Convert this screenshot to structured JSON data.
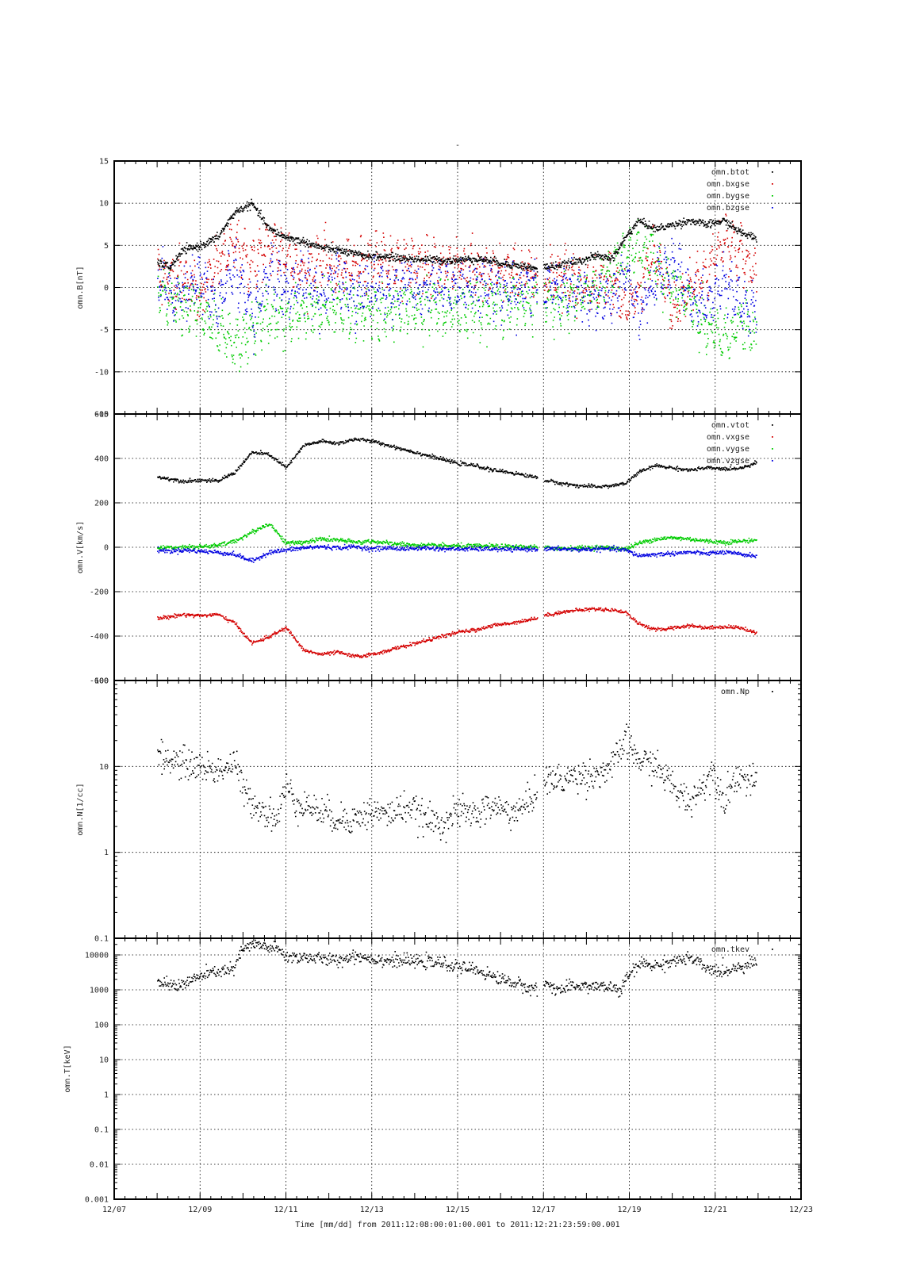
{
  "figure": {
    "title": "-",
    "xlabel_text": "Time [mm/dd]  from 2011:12:08:00:01:00.001  to  2011:12:21:23:59:00.001"
  },
  "colors": {
    "black": "#000000",
    "red": "#d40000",
    "green": "#00cc00",
    "blue": "#0000e0"
  },
  "chart_data": [
    {
      "type": "scatter",
      "id": "b",
      "ylabel": "omn.B[nT]",
      "yscale": "linear",
      "ylim": [
        -15,
        15
      ],
      "yticks": [
        -15,
        -10,
        -5,
        0,
        5,
        10,
        15
      ],
      "ytick_labels": [
        "-15",
        "-10",
        "-5",
        "0",
        "5",
        "10",
        "15"
      ],
      "xlim": [
        "12/07",
        "12/23"
      ],
      "xtick_labels": [
        "12/07",
        "12/09",
        "12/11",
        "12/13",
        "12/15",
        "12/17",
        "12/19",
        "12/21",
        "12/23"
      ],
      "xticks_day": [
        7,
        9,
        11,
        13,
        15,
        17,
        19,
        21,
        23
      ],
      "grid": true,
      "legend": "top-right",
      "series": [
        {
          "name": "omn.btot",
          "color": "#000000",
          "x": [
            8.0,
            8.3,
            8.6,
            9.0,
            9.4,
            9.8,
            10.2,
            10.6,
            11.0,
            11.4,
            11.8,
            12.2,
            12.6,
            13.0,
            13.4,
            13.8,
            14.2,
            14.6,
            15.0,
            15.4,
            15.8,
            16.2,
            16.6,
            16.9,
            17.0,
            17.4,
            17.8,
            18.2,
            18.6,
            18.9,
            19.2,
            19.6,
            20.0,
            20.4,
            20.8,
            21.2,
            21.6,
            21.95
          ],
          "y": [
            3,
            2.5,
            4.5,
            5,
            6,
            9,
            10,
            7,
            6,
            5.5,
            4.8,
            4.5,
            4,
            3.8,
            3.7,
            3.5,
            3.4,
            3.3,
            3.3,
            3.5,
            3.2,
            2.8,
            2.5,
            2.2,
            2.5,
            2.7,
            3.2,
            3.8,
            3.5,
            6,
            8,
            7,
            7.5,
            8,
            7.5,
            8,
            6.5,
            6
          ]
        },
        {
          "name": "omn.bxgse",
          "color": "#d40000",
          "x": [
            8.0,
            8.3,
            8.6,
            9.0,
            9.4,
            9.8,
            10.2,
            10.6,
            11.0,
            11.4,
            11.8,
            12.2,
            12.6,
            13.0,
            13.4,
            13.8,
            14.2,
            14.6,
            15.0,
            15.4,
            15.8,
            16.2,
            16.6,
            16.9,
            17.0,
            17.4,
            17.8,
            18.2,
            18.6,
            18.9,
            19.2,
            19.6,
            20.0,
            20.4,
            20.8,
            21.2,
            21.6,
            21.95
          ],
          "y": [
            2,
            1,
            1.5,
            -1,
            3,
            5,
            3,
            5,
            4,
            2,
            3.5,
            2,
            2.5,
            3.5,
            3,
            3,
            2.5,
            2.5,
            3,
            2,
            1.5,
            1.8,
            1.5,
            1,
            1,
            2,
            0.5,
            0.5,
            1.5,
            -3,
            0,
            4,
            -3,
            0,
            2,
            6,
            4,
            1
          ]
        },
        {
          "name": "omn.bygse",
          "color": "#00cc00",
          "x": [
            8.0,
            8.3,
            8.6,
            9.0,
            9.4,
            9.8,
            10.2,
            10.6,
            11.0,
            11.4,
            11.8,
            12.2,
            12.6,
            13.0,
            13.4,
            13.8,
            14.2,
            14.6,
            15.0,
            15.4,
            15.8,
            16.2,
            16.6,
            16.9,
            17.0,
            17.4,
            17.8,
            18.2,
            18.6,
            18.9,
            19.2,
            19.6,
            20.0,
            20.4,
            20.8,
            21.2,
            21.6,
            21.95
          ],
          "y": [
            0,
            -1,
            -2,
            -3,
            -5,
            -7,
            -5,
            -3,
            -4,
            -2.5,
            -3,
            -2,
            -3,
            -2.5,
            -3,
            -2.5,
            -2,
            -2.5,
            -2.5,
            -2,
            -2,
            -1.8,
            -1.5,
            -1,
            -1.5,
            -2,
            -1,
            0,
            2,
            4,
            5,
            3,
            0,
            -2,
            -5,
            -6,
            -4,
            -6
          ]
        },
        {
          "name": "omn.bzgse",
          "color": "#0000e0",
          "x": [
            8.0,
            8.3,
            8.6,
            9.0,
            9.4,
            9.8,
            10.2,
            10.6,
            11.0,
            11.4,
            11.8,
            12.2,
            12.6,
            13.0,
            13.4,
            13.8,
            14.2,
            14.6,
            15.0,
            15.4,
            15.8,
            16.2,
            16.6,
            16.9,
            17.0,
            17.4,
            17.8,
            18.2,
            18.6,
            18.9,
            19.2,
            19.6,
            20.0,
            20.4,
            20.8,
            21.2,
            21.6,
            21.95
          ],
          "y": [
            2,
            -1,
            0,
            1,
            -2,
            3,
            -4,
            2,
            -1,
            1,
            -1,
            1.5,
            -1,
            0.5,
            -0.5,
            0.5,
            0,
            0.5,
            0,
            0.5,
            0,
            -0.5,
            0.3,
            0,
            0.5,
            0,
            -0.5,
            -1,
            -1.5,
            2,
            -3,
            1,
            3,
            -1,
            -2,
            1,
            -2,
            -3
          ]
        }
      ]
    },
    {
      "type": "scatter",
      "id": "v",
      "ylabel": "omn.V[km/s]",
      "yscale": "linear",
      "ylim": [
        -600,
        600
      ],
      "yticks": [
        -600,
        -400,
        -200,
        0,
        200,
        400,
        600
      ],
      "ytick_labels": [
        "-600",
        "-400",
        "-200",
        "0",
        "200",
        "400",
        "600"
      ],
      "xlim": [
        "12/07",
        "12/23"
      ],
      "grid": true,
      "legend": "top-right",
      "series": [
        {
          "name": "omn.vtot",
          "color": "#000000",
          "x": [
            8.0,
            8.3,
            8.6,
            9.0,
            9.4,
            9.8,
            10.2,
            10.6,
            11.0,
            11.4,
            11.8,
            12.2,
            12.6,
            13.0,
            13.4,
            13.8,
            14.2,
            14.6,
            15.0,
            15.4,
            15.8,
            16.2,
            16.6,
            16.9,
            17.0,
            17.4,
            17.8,
            18.2,
            18.6,
            18.9,
            19.2,
            19.6,
            20.0,
            20.4,
            20.8,
            21.2,
            21.6,
            21.95
          ],
          "y": [
            318,
            310,
            300,
            305,
            300,
            340,
            430,
            420,
            360,
            460,
            480,
            470,
            490,
            480,
            460,
            440,
            420,
            400,
            380,
            370,
            350,
            340,
            325,
            315,
            305,
            290,
            280,
            275,
            280,
            290,
            340,
            370,
            360,
            350,
            360,
            355,
            360,
            385
          ]
        },
        {
          "name": "omn.vxgse",
          "color": "#d40000",
          "x": [
            8.0,
            8.3,
            8.6,
            9.0,
            9.4,
            9.8,
            10.2,
            10.6,
            11.0,
            11.4,
            11.8,
            12.2,
            12.6,
            13.0,
            13.4,
            13.8,
            14.2,
            14.6,
            15.0,
            15.4,
            15.8,
            16.2,
            16.6,
            16.9,
            17.0,
            17.4,
            17.8,
            18.2,
            18.6,
            18.9,
            19.2,
            19.6,
            20.0,
            20.4,
            20.8,
            21.2,
            21.6,
            21.95
          ],
          "y": [
            -318,
            -310,
            -300,
            -305,
            -300,
            -340,
            -430,
            -400,
            -360,
            -460,
            -480,
            -470,
            -490,
            -480,
            -460,
            -440,
            -420,
            -400,
            -380,
            -370,
            -350,
            -340,
            -325,
            -315,
            -305,
            -290,
            -280,
            -275,
            -280,
            -290,
            -340,
            -370,
            -360,
            -350,
            -360,
            -355,
            -360,
            -385
          ]
        },
        {
          "name": "omn.vygse",
          "color": "#00cc00",
          "x": [
            8.0,
            8.3,
            8.6,
            9.0,
            9.4,
            9.8,
            10.2,
            10.6,
            11.0,
            11.4,
            11.8,
            12.2,
            12.6,
            13.0,
            13.4,
            13.8,
            14.2,
            14.6,
            15.0,
            15.4,
            15.8,
            16.2,
            16.6,
            16.9,
            17.0,
            17.4,
            17.8,
            18.2,
            18.6,
            18.9,
            19.2,
            19.6,
            20.0,
            20.4,
            20.8,
            21.2,
            21.6,
            21.95
          ],
          "y": [
            0,
            2,
            5,
            5,
            10,
            30,
            70,
            110,
            20,
            25,
            40,
            35,
            25,
            30,
            20,
            15,
            10,
            10,
            8,
            8,
            8,
            5,
            5,
            2,
            0,
            -2,
            0,
            2,
            0,
            -5,
            20,
            40,
            45,
            40,
            30,
            25,
            30,
            35
          ]
        },
        {
          "name": "omn.vzgse",
          "color": "#0000e0",
          "x": [
            8.0,
            8.3,
            8.6,
            9.0,
            9.4,
            9.8,
            10.2,
            10.6,
            11.0,
            11.4,
            11.8,
            12.2,
            12.6,
            13.0,
            13.4,
            13.8,
            14.2,
            14.6,
            15.0,
            15.4,
            15.8,
            16.2,
            16.6,
            16.9,
            17.0,
            17.4,
            17.8,
            18.2,
            18.6,
            18.9,
            19.2,
            19.6,
            20.0,
            20.4,
            20.8,
            21.2,
            21.6,
            21.95
          ],
          "y": [
            -10,
            -15,
            -10,
            -15,
            -20,
            -30,
            -60,
            -20,
            -10,
            0,
            5,
            0,
            5,
            -5,
            0,
            -5,
            0,
            -5,
            -5,
            -5,
            -5,
            -8,
            -5,
            -5,
            -5,
            -5,
            -8,
            -5,
            -5,
            -10,
            -35,
            -30,
            -25,
            -20,
            -25,
            -20,
            -30,
            -35
          ]
        }
      ]
    },
    {
      "type": "scatter",
      "id": "n",
      "ylabel": "omn.N[1/cc]",
      "yscale": "log",
      "ylim": [
        0.1,
        100
      ],
      "yticks": [
        0.1,
        1,
        10,
        100
      ],
      "ytick_labels": [
        "0.1",
        "1",
        "10",
        "100"
      ],
      "xlim": [
        "12/07",
        "12/23"
      ],
      "grid": true,
      "legend": "top-right",
      "series": [
        {
          "name": "omn.Np",
          "color": "#000000",
          "x": [
            8.0,
            8.3,
            8.6,
            9.0,
            9.4,
            9.8,
            10.0,
            10.2,
            10.5,
            10.8,
            11.0,
            11.2,
            11.5,
            11.8,
            12.2,
            12.6,
            13.0,
            13.4,
            13.8,
            14.2,
            14.6,
            15.0,
            15.4,
            15.8,
            16.2,
            16.5,
            16.8,
            17.0,
            17.4,
            17.8,
            18.2,
            18.6,
            18.9,
            19.2,
            19.5,
            19.8,
            20.1,
            20.4,
            20.7,
            20.9,
            21.2,
            21.5,
            21.95
          ],
          "y": [
            13,
            12,
            11,
            10,
            9,
            11,
            5,
            4,
            3,
            2.5,
            6,
            4,
            3.5,
            3,
            2.5,
            2.5,
            3,
            2.8,
            3.5,
            2.5,
            2.2,
            3,
            2.8,
            3.5,
            3,
            3.2,
            5,
            7,
            7,
            8,
            8,
            10,
            20,
            12,
            11,
            8,
            5,
            4,
            6,
            9,
            4,
            8,
            6
          ]
        }
      ]
    },
    {
      "type": "scatter",
      "id": "t",
      "ylabel": "omn.T[keV]",
      "yscale": "log",
      "ylim": [
        0.001,
        30000
      ],
      "yticks": [
        0.001,
        0.01,
        0.1,
        1,
        10,
        100,
        1000,
        10000
      ],
      "ytick_labels": [
        "0.001",
        "0.01",
        "0.1",
        "1",
        "10",
        "100",
        "1000",
        "10000"
      ],
      "xlim": [
        "12/07",
        "12/23"
      ],
      "grid": true,
      "legend": "top-right",
      "series": [
        {
          "name": "omn.tkev",
          "color": "#000000",
          "x": [
            8.0,
            8.3,
            8.6,
            9.0,
            9.4,
            9.8,
            10.0,
            10.2,
            10.5,
            10.8,
            11.0,
            11.4,
            11.8,
            12.2,
            12.6,
            13.0,
            13.4,
            13.8,
            14.2,
            14.6,
            15.0,
            15.4,
            15.8,
            16.2,
            16.6,
            16.9,
            17.0,
            17.4,
            17.8,
            18.2,
            18.6,
            18.8,
            19.0,
            19.3,
            19.6,
            20.0,
            20.4,
            20.8,
            21.2,
            21.6,
            21.95
          ],
          "y": [
            1800,
            1400,
            1500,
            2500,
            3500,
            4000,
            15000,
            20000,
            18000,
            15000,
            9000,
            9000,
            8000,
            7000,
            10000,
            8000,
            7000,
            7000,
            6500,
            6000,
            4500,
            4000,
            2500,
            1800,
            1200,
            1100,
            1600,
            1000,
            1400,
            1300,
            1200,
            900,
            3000,
            6000,
            5000,
            7000,
            8000,
            4000,
            3500,
            5000,
            7000
          ]
        }
      ]
    }
  ]
}
